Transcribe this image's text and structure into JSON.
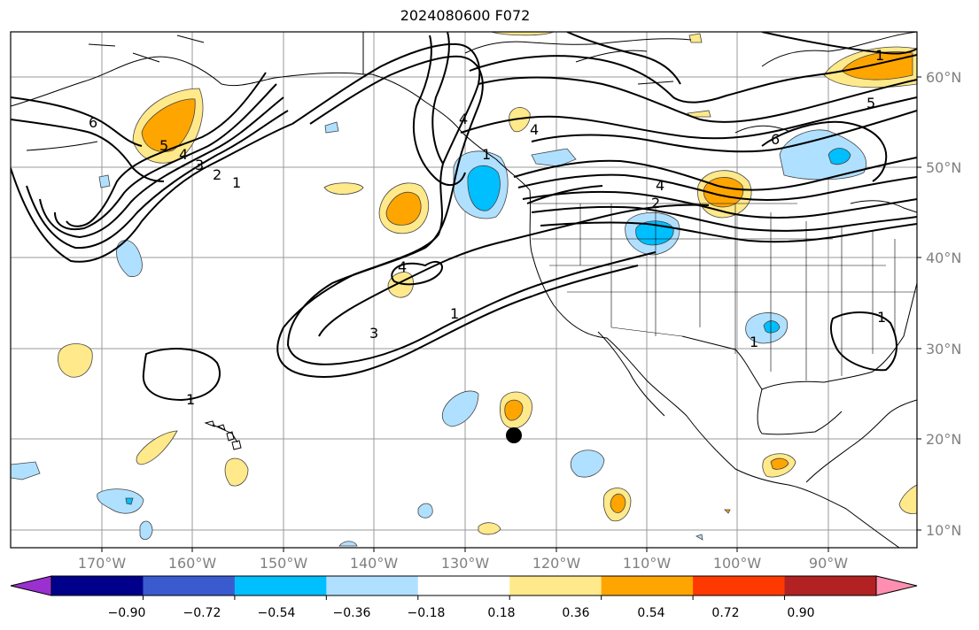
{
  "title": "2024080600 F072",
  "lat_labels": [
    "60°N",
    "50°N",
    "40°N",
    "30°N",
    "20°N",
    "10°N"
  ],
  "lon_labels": [
    "170°W",
    "160°W",
    "150°W",
    "140°W",
    "130°W",
    "120°W",
    "110°W",
    "100°W",
    "90°W"
  ],
  "colorbar": {
    "labels": [
      "−0.90",
      "−0.72",
      "−0.54",
      "−0.36",
      "−0.18",
      "0.18",
      "0.36",
      "0.54",
      "0.72",
      "0.90"
    ],
    "colors": [
      "#9b30d0",
      "#00008b",
      "#3a5bd0",
      "#00bfff",
      "#b0e0ff",
      "#ffffff",
      "#ffe98a",
      "#ffa500",
      "#ff3a00",
      "#b22222",
      "#ff8fb1"
    ]
  },
  "contour_labels": [
    "1",
    "2",
    "3",
    "4",
    "5",
    "6",
    "1",
    "2",
    "4",
    "6",
    "5",
    "1",
    "1",
    "3",
    "4",
    "1",
    "1",
    "1",
    "4",
    "4"
  ],
  "colors": {
    "warm_light": "#ffe98a",
    "warm_mid": "#ffa500",
    "cool_light": "#b0e0ff",
    "cool_mid": "#00bfff"
  }
}
